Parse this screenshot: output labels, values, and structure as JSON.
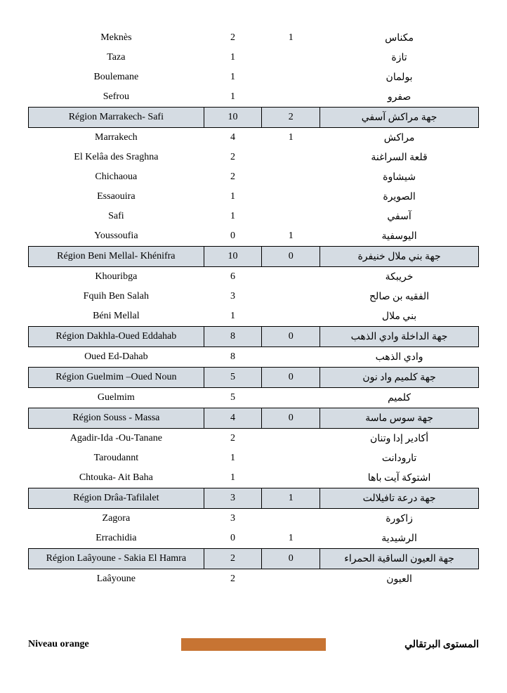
{
  "rows": [
    {
      "type": "detail",
      "fr": "Meknès",
      "n1": "2",
      "n2": "1",
      "ar": "مكناس"
    },
    {
      "type": "detail",
      "fr": "Taza",
      "n1": "1",
      "n2": "",
      "ar": "تازة"
    },
    {
      "type": "detail",
      "fr": "Boulemane",
      "n1": "1",
      "n2": "",
      "ar": "بولمان"
    },
    {
      "type": "detail",
      "fr": "Sefrou",
      "n1": "1",
      "n2": "",
      "ar": "صفرو"
    },
    {
      "type": "region",
      "fr": "Région Marrakech- Safi",
      "n1": "10",
      "n2": "2",
      "ar": "جهة مراكش آسفي"
    },
    {
      "type": "detail",
      "fr": "Marrakech",
      "n1": "4",
      "n2": "1",
      "ar": "مراكش"
    },
    {
      "type": "detail",
      "fr": "El Kelâa des  Sraghna",
      "n1": "2",
      "n2": "",
      "ar": "قلعة السراغنة"
    },
    {
      "type": "detail",
      "fr": "Chichaoua",
      "n1": "2",
      "n2": "",
      "ar": "شيشاوة"
    },
    {
      "type": "detail",
      "fr": "Essaouira",
      "n1": "1",
      "n2": "",
      "ar": "الصويرة"
    },
    {
      "type": "detail",
      "fr": "Safi",
      "n1": "1",
      "n2": "",
      "ar": "آسفي"
    },
    {
      "type": "detail",
      "fr": "Youssoufia",
      "n1": "0",
      "n2": "1",
      "ar": "اليوسفية"
    },
    {
      "type": "region",
      "fr": "Région Beni Mellal- Khénifra",
      "n1": "10",
      "n2": "0",
      "ar": "جهة بني ملال خنيفرة"
    },
    {
      "type": "detail",
      "fr": "Khouribga",
      "n1": "6",
      "n2": "",
      "ar": "خريبكة"
    },
    {
      "type": "detail",
      "fr": "Fquih Ben Salah",
      "n1": "3",
      "n2": "",
      "ar": "الفقيه بن صالح"
    },
    {
      "type": "detail",
      "fr": "Béni Mellal",
      "n1": "1",
      "n2": "",
      "ar": "بني ملال"
    },
    {
      "type": "region",
      "fr": "Région Dakhla-Oued Eddahab",
      "n1": "8",
      "n2": "0",
      "ar": "جهة الداخلة وادي الذهب"
    },
    {
      "type": "detail",
      "fr": "Oued Ed-Dahab",
      "n1": "8",
      "n2": "",
      "ar": "وادي الذهب"
    },
    {
      "type": "region",
      "fr": "Région Guelmim –Oued Noun",
      "n1": "5",
      "n2": "0",
      "ar": "جهة كلميم واد نون"
    },
    {
      "type": "detail",
      "fr": "Guelmim",
      "n1": "5",
      "n2": "",
      "ar": "كلميم"
    },
    {
      "type": "region",
      "fr": "Région Souss - Massa",
      "n1": "4",
      "n2": "0",
      "ar": "جهة سوس ماسة"
    },
    {
      "type": "detail",
      "fr": "Agadir-Ida -Ou-Tanane",
      "n1": "2",
      "n2": "",
      "ar": "أكادير إدا وتنان"
    },
    {
      "type": "detail",
      "fr": "Taroudannt",
      "n1": "1",
      "n2": "",
      "ar": "تارودانت"
    },
    {
      "type": "detail",
      "fr": "Chtouka- Ait Baha",
      "n1": "1",
      "n2": "",
      "ar": "اشتوكة آيت باها"
    },
    {
      "type": "region",
      "fr": "Région Drâa-Tafilalet",
      "n1": "3",
      "n2": "1",
      "ar": "جهة درعة تافيلالت"
    },
    {
      "type": "detail",
      "fr": "Zagora",
      "n1": "3",
      "n2": "",
      "ar": "زاكورة"
    },
    {
      "type": "detail",
      "fr": "Errachidia",
      "n1": "0",
      "n2": "1",
      "ar": "الرشيدية"
    },
    {
      "type": "region",
      "fr": "Région Laâyoune - Sakia El Hamra",
      "n1": "2",
      "n2": "0",
      "ar": "جهة العيون الساقية الحمراء"
    },
    {
      "type": "detail",
      "fr": "Laâyoune",
      "n1": "2",
      "n2": "",
      "ar": "العيون"
    }
  ],
  "footer": {
    "fr": "Niveau orange",
    "ar": "المستوى البرتقالي",
    "bar_color": "#c77433"
  }
}
